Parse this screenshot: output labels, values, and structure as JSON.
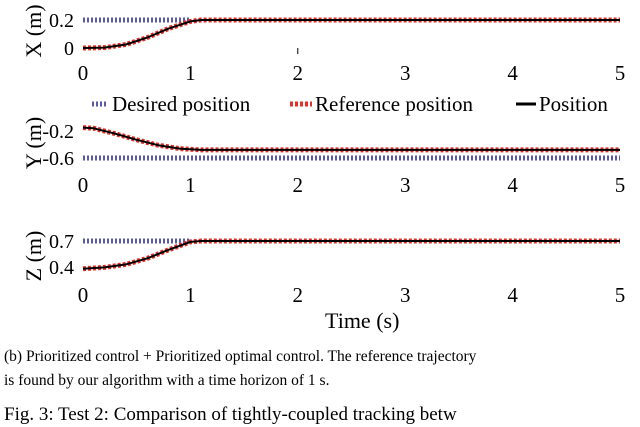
{
  "chart_data": [
    {
      "type": "line",
      "ylabel": "X (m)",
      "xlim": [
        0,
        5
      ],
      "yticks": [
        "0",
        "0.2"
      ],
      "xticks": [
        "0",
        "1",
        "2",
        "3",
        "4",
        "5"
      ],
      "series": [
        {
          "name": "Desired position",
          "color": "#5a5aa6",
          "style": "dotted",
          "x": [
            0,
            1.0
          ],
          "y": [
            0.2,
            0.2
          ]
        },
        {
          "name": "Reference position",
          "color": "#e0302a",
          "style": "dashed",
          "x": [
            0,
            0.2,
            0.4,
            0.6,
            0.8,
            1.0,
            1.1,
            5
          ],
          "y": [
            0.0,
            0.003,
            0.025,
            0.075,
            0.14,
            0.19,
            0.2,
            0.2
          ]
        },
        {
          "name": "Position",
          "color": "#000000",
          "style": "solid",
          "x": [
            0,
            0.2,
            0.4,
            0.6,
            0.8,
            1.0,
            1.1,
            5
          ],
          "y": [
            0.0,
            0.003,
            0.025,
            0.075,
            0.14,
            0.19,
            0.2,
            0.2
          ]
        }
      ]
    },
    {
      "type": "line",
      "ylabel": "Y (m)",
      "xlim": [
        0,
        5
      ],
      "yticks": [
        "-0.2",
        "-0.6"
      ],
      "xticks": [
        "0",
        "1",
        "2",
        "3",
        "4",
        "5"
      ],
      "series": [
        {
          "name": "Desired position",
          "color": "#5a5aa6",
          "style": "dotted",
          "x": [
            0,
            5
          ],
          "y": [
            -0.6,
            -0.6
          ]
        },
        {
          "name": "Reference position",
          "color": "#e0302a",
          "style": "dashed",
          "x": [
            0,
            0.1,
            0.3,
            0.5,
            0.7,
            0.9,
            1.1,
            5
          ],
          "y": [
            -0.15,
            -0.16,
            -0.24,
            -0.33,
            -0.41,
            -0.46,
            -0.48,
            -0.48
          ]
        },
        {
          "name": "Position",
          "color": "#000000",
          "style": "solid",
          "x": [
            0,
            0.1,
            0.3,
            0.5,
            0.7,
            0.9,
            1.1,
            5
          ],
          "y": [
            -0.15,
            -0.16,
            -0.24,
            -0.33,
            -0.41,
            -0.46,
            -0.48,
            -0.48
          ]
        }
      ]
    },
    {
      "type": "line",
      "ylabel": "Z (m)",
      "xlabel": "Time (s)",
      "xlim": [
        0,
        5
      ],
      "yticks": [
        "0.7",
        "0.4"
      ],
      "xticks": [
        "0",
        "1",
        "2",
        "3",
        "4",
        "5"
      ],
      "series": [
        {
          "name": "Desired position",
          "color": "#5a5aa6",
          "style": "dotted",
          "x": [
            0,
            1.0
          ],
          "y": [
            0.7,
            0.7
          ]
        },
        {
          "name": "Reference position",
          "color": "#e0302a",
          "style": "dashed",
          "x": [
            0,
            0.2,
            0.4,
            0.6,
            0.8,
            1.0,
            1.1,
            5
          ],
          "y": [
            0.38,
            0.395,
            0.43,
            0.5,
            0.6,
            0.69,
            0.7,
            0.7
          ]
        },
        {
          "name": "Position",
          "color": "#000000",
          "style": "solid",
          "x": [
            0,
            0.2,
            0.4,
            0.6,
            0.8,
            1.0,
            1.1,
            5
          ],
          "y": [
            0.38,
            0.395,
            0.43,
            0.5,
            0.6,
            0.69,
            0.7,
            0.7
          ]
        }
      ]
    }
  ],
  "legend": [
    "Desired position",
    "Reference position",
    "Position"
  ],
  "caption": {
    "line1": "(b) Prioritized control + Prioritized optimal control. The reference trajectory",
    "line2": "is found by our algorithm with a time horizon of 1 s.",
    "line3": "Fig. 3: Test 2: Comparison of tightly-coupled tracking betw"
  }
}
